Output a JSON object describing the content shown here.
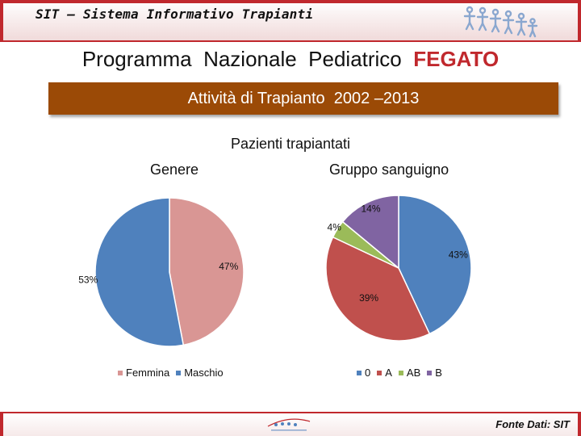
{
  "header": {
    "system_title": "SIT – Sistema Informativo Trapianti",
    "program_title": "Programma  Nazionale  Pediatrico",
    "program_organ": "FEGATO"
  },
  "banner": {
    "text": "Attività di Trapianto  2002 –2013"
  },
  "footer": {
    "source": "Fonte Dati: SIT"
  },
  "colors": {
    "accent": "#c0282d",
    "banner": "#9b4a06",
    "blue": "#4f81bd",
    "red": "#c0504d",
    "green": "#9bbb59",
    "purple": "#8064a2",
    "pink": "#d99694"
  },
  "chart_data": [
    {
      "type": "pie",
      "title": "Pazienti trapiantati",
      "subtitle": "Genere",
      "categories": [
        "Femmina",
        "Maschio"
      ],
      "values": [
        47,
        53
      ],
      "labels": [
        "47%",
        "53%"
      ],
      "colors": [
        "#d99694",
        "#4f81bd"
      ],
      "legend": "bottom"
    },
    {
      "type": "pie",
      "title": "Pazienti trapiantati",
      "subtitle": "Gruppo sanguigno",
      "categories": [
        "0",
        "A",
        "AB",
        "B"
      ],
      "values": [
        43,
        39,
        4,
        14
      ],
      "labels": [
        "43%",
        "39%",
        "4%",
        "14%"
      ],
      "colors": [
        "#4f81bd",
        "#c0504d",
        "#9bbb59",
        "#8064a2"
      ],
      "legend": "bottom"
    }
  ]
}
